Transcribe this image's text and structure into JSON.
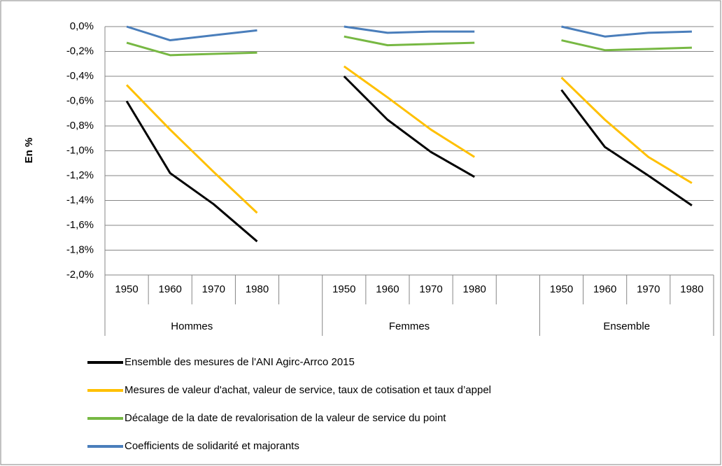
{
  "chart_data": {
    "type": "line",
    "y_label": "En %",
    "categories": [
      "1950",
      "1960",
      "1970",
      "1980",
      null,
      "1950",
      "1960",
      "1970",
      "1980",
      null,
      "1950",
      "1960",
      "1970",
      "1980"
    ],
    "groups": [
      "Hommes",
      "Femmes",
      "Ensemble"
    ],
    "ylim": [
      -2.0,
      0
    ],
    "yticks": [
      {
        "value": 0,
        "label": "0,0%"
      },
      {
        "value": -0.2,
        "label": "-0,2%"
      },
      {
        "value": -0.4,
        "label": "-0,4%"
      },
      {
        "value": -0.6,
        "label": "-0,6%"
      },
      {
        "value": -0.8,
        "label": "-0,8%"
      },
      {
        "value": -1.0,
        "label": "-1,0%"
      },
      {
        "value": -1.2,
        "label": "-1,2%"
      },
      {
        "value": -1.4,
        "label": "-1,4%"
      },
      {
        "value": -1.6,
        "label": "-1,6%"
      },
      {
        "value": -1.8,
        "label": "-1,8%"
      },
      {
        "value": -2.0,
        "label": "-2,0%"
      }
    ],
    "grid": true,
    "legend": "bottom-left",
    "series": [
      {
        "name": "Ensemble des mesures de l'ANI Agirc-Arrco 2015",
        "color": "#000000",
        "values": [
          -0.6,
          -1.18,
          -1.43,
          -1.73,
          null,
          -0.4,
          -0.75,
          -1.01,
          -1.21,
          null,
          -0.51,
          -0.97,
          -1.2,
          -1.44
        ]
      },
      {
        "name": "Mesures de valeur d'achat, valeur de service, taux de cotisation et taux d’appel",
        "color": "#ffc000",
        "values": [
          -0.47,
          -0.83,
          -1.17,
          -1.5,
          null,
          -0.32,
          -0.57,
          -0.83,
          -1.05,
          null,
          -0.41,
          -0.75,
          -1.05,
          -1.26
        ]
      },
      {
        "name": "Décalage de la date de revalorisation de la valeur de service du point",
        "color": "#77b843",
        "values": [
          -0.13,
          -0.23,
          -0.22,
          -0.21,
          null,
          -0.08,
          -0.15,
          -0.14,
          -0.13,
          null,
          -0.11,
          -0.19,
          -0.18,
          -0.17
        ]
      },
      {
        "name": "Coefficients de solidarité et majorants",
        "color": "#4a7ebb",
        "values": [
          0.0,
          -0.11,
          -0.07,
          -0.03,
          null,
          0.0,
          -0.05,
          -0.04,
          -0.04,
          null,
          0.0,
          -0.08,
          -0.05,
          -0.04
        ]
      }
    ]
  }
}
